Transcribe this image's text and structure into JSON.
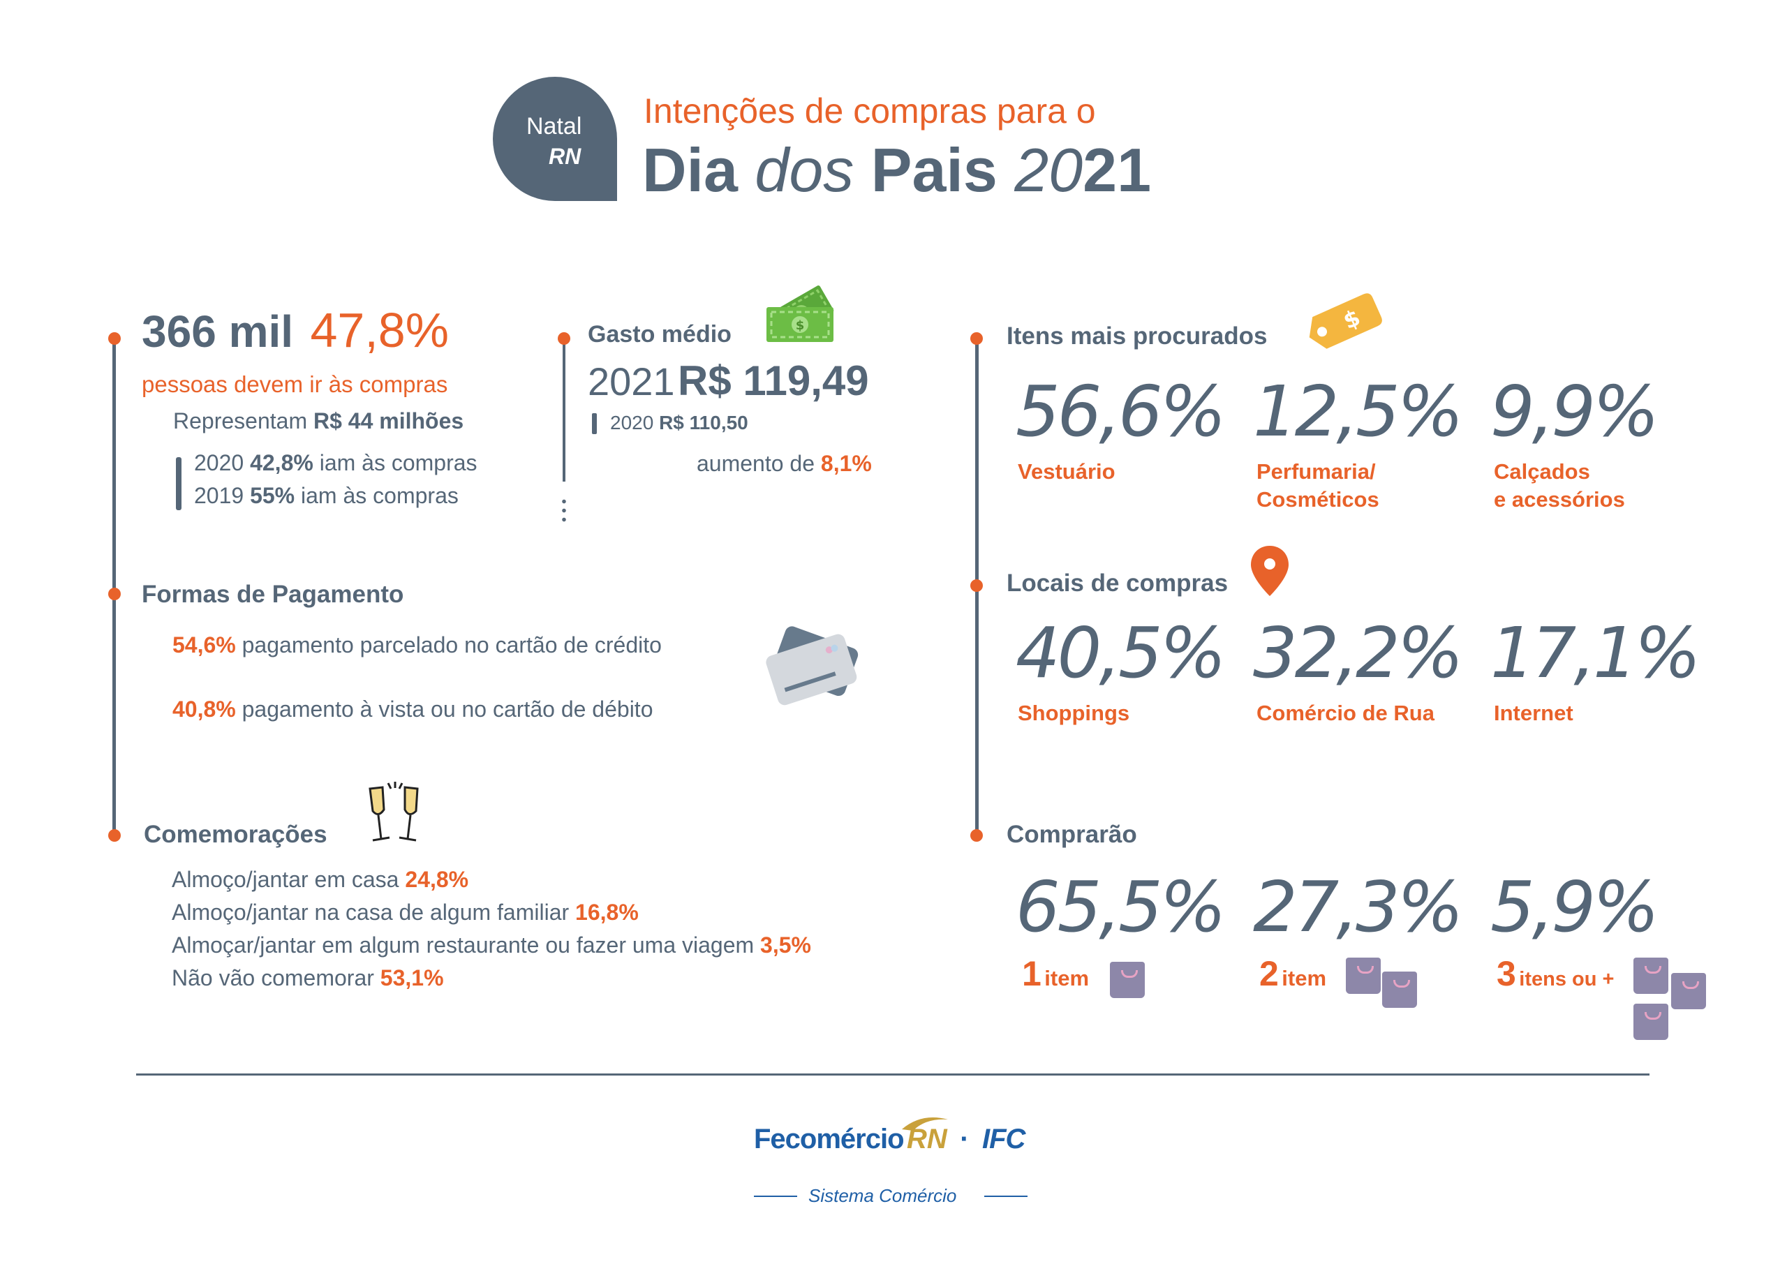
{
  "header": {
    "badge_line1": "Natal",
    "badge_line2": "RN",
    "subtitle": "Intenções de compras para o",
    "title_word1": "Dia",
    "title_word2": "dos",
    "title_word3": "Pais",
    "title_year_a": "20",
    "title_year_b": "21"
  },
  "people": {
    "count": "366 mil",
    "percent": "47,8%",
    "caption": "pessoas devem ir às compras",
    "represent_prefix": "Representam",
    "represent_value": "R$ 44 milhões",
    "hist_2020_year": "2020",
    "hist_2020_value": "42,8%",
    "hist_2020_text": "iam às compras",
    "hist_2019_year": "2019",
    "hist_2019_value": "55%",
    "hist_2019_text": "iam às compras"
  },
  "spend": {
    "title": "Gasto médio",
    "year_2021": "2021",
    "value_2021": "R$ 119,49",
    "year_2020": "2020",
    "value_2020": "R$ 110,50",
    "increase_prefix": "aumento de",
    "increase_value": "8,1%"
  },
  "payment": {
    "title": "Formas de Pagamento",
    "items": [
      {
        "value": "54,6%",
        "text": "pagamento parcelado no cartão de crédito"
      },
      {
        "value": "40,8%",
        "text": "pagamento à vista ou no cartão de débito"
      }
    ]
  },
  "celebrations": {
    "title": "Comemorações",
    "items": [
      {
        "text": "Almoço/jantar em casa",
        "value": "24,8%"
      },
      {
        "text": "Almoço/jantar na casa de algum familiar",
        "value": "16,8%"
      },
      {
        "text": "Almoçar/jantar em algum restaurante ou fazer uma viagem",
        "value": "3,5%"
      },
      {
        "text": "Não vão comemorar",
        "value": "53,1%"
      }
    ]
  },
  "items": {
    "title": "Itens mais procurados",
    "entries": [
      {
        "pct": "56,6%",
        "label1": "Vestuário",
        "label2": ""
      },
      {
        "pct": "12,5%",
        "label1": "Perfumaria/",
        "label2": "Cosméticos"
      },
      {
        "pct": "9,9%",
        "label1": "Calçados",
        "label2": "e acessórios"
      }
    ]
  },
  "places": {
    "title": "Locais de compras",
    "entries": [
      {
        "pct": "40,5%",
        "label": "Shoppings"
      },
      {
        "pct": "32,2%",
        "label": "Comércio de Rua"
      },
      {
        "pct": "17,1%",
        "label": "Internet"
      }
    ]
  },
  "buy": {
    "title": "Comprarão",
    "entries": [
      {
        "pct": "65,5%",
        "num": "1",
        "label": "item"
      },
      {
        "pct": "27,3%",
        "num": "2",
        "label": "item"
      },
      {
        "pct": "5,9%",
        "num": "3",
        "label": "itens ou +"
      }
    ]
  },
  "footer": {
    "brand_a": "Fecomércio",
    "brand_b": "RN",
    "separator": "·",
    "brand_c": "IFC",
    "tagline": "Sistema Comércio"
  },
  "colors": {
    "slate": "#556677",
    "orange": "#e8622a",
    "money_green": "#6cbd45",
    "tag_yellow": "#f4b63f",
    "bag_purple": "#8d87a9",
    "fecomercio_blue": "#1f5fa6",
    "gold": "#c9a13b"
  },
  "icons": [
    "money-icon",
    "price-tag-icon",
    "location-pin-icon",
    "credit-card-icon",
    "champagne-glasses-icon",
    "shopping-bag-icon"
  ]
}
